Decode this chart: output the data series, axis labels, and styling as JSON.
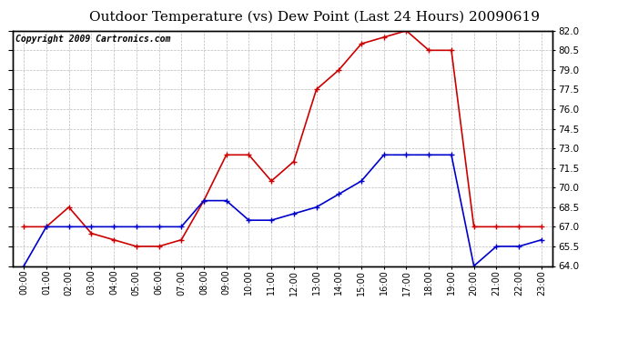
{
  "title": "Outdoor Temperature (vs) Dew Point (Last 24 Hours) 20090619",
  "copyright": "Copyright 2009 Cartronics.com",
  "hours": [
    "00:00",
    "01:00",
    "02:00",
    "03:00",
    "04:00",
    "05:00",
    "06:00",
    "07:00",
    "08:00",
    "09:00",
    "10:00",
    "11:00",
    "12:00",
    "13:00",
    "14:00",
    "15:00",
    "16:00",
    "17:00",
    "18:00",
    "19:00",
    "20:00",
    "21:00",
    "22:00",
    "23:00"
  ],
  "temp": [
    67.0,
    67.0,
    68.5,
    66.5,
    66.0,
    65.5,
    65.5,
    66.0,
    69.0,
    72.5,
    72.5,
    70.5,
    72.0,
    77.5,
    79.0,
    81.0,
    81.5,
    82.0,
    80.5,
    80.5,
    67.0,
    67.0,
    67.0,
    67.0
  ],
  "dew": [
    64.0,
    67.0,
    67.0,
    67.0,
    67.0,
    67.0,
    67.0,
    67.0,
    69.0,
    69.0,
    67.5,
    67.5,
    68.0,
    68.5,
    69.5,
    70.5,
    72.5,
    72.5,
    72.5,
    72.5,
    64.0,
    65.5,
    65.5,
    66.0
  ],
  "temp_color": "#cc0000",
  "dew_color": "#0000cc",
  "ylim": [
    64.0,
    82.0
  ],
  "bg_color": "#ffffff",
  "grid_color": "#bbbbbb",
  "title_fontsize": 11,
  "copyright_fontsize": 7
}
